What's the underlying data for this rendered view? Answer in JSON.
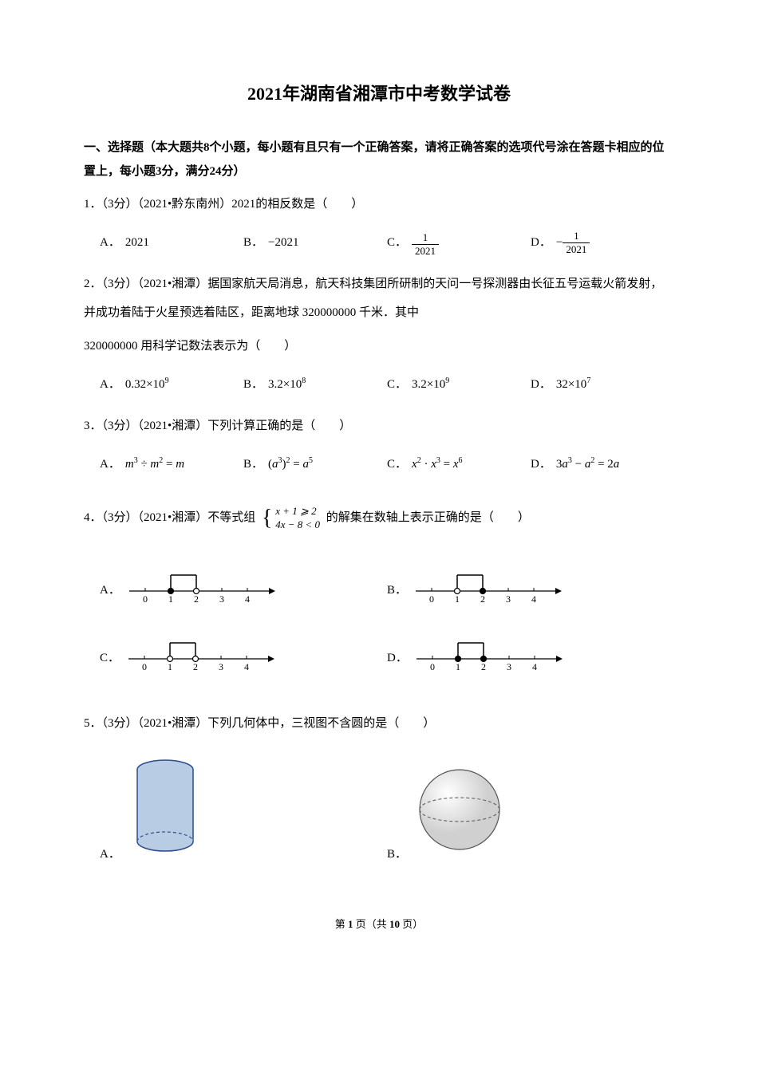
{
  "title": "2021年湖南省湘潭市中考数学试卷",
  "section_header": "一、选择题（本大题共8个小题，每小题有且只有一个正确答案，请将正确答案的选项代号涂在答题卡相应的位置上，每小题3分，满分24分）",
  "q1": {
    "text": "1．（3分）（2021•黔东南州）2021的相反数是",
    "paren": "（　　）",
    "options": {
      "A": {
        "label": "A．",
        "value": "2021"
      },
      "B": {
        "label": "B．",
        "value": "−2021"
      },
      "C": {
        "label": "C．",
        "num": "1",
        "den": "2021"
      },
      "D": {
        "label": "D．",
        "neg": "−",
        "num": "1",
        "den": "2021"
      }
    }
  },
  "q2": {
    "text1": "2．（3分）（2021•湘潭）据国家航天局消息，航天科技集团所研制的天问一号探测器由长征五号运载火箭发射，并成功着陆于火星预选着陆区，距离地球 320000000 千米．其中",
    "text2": "320000000 用科学记数法表示为",
    "paren": "（　　）",
    "options": {
      "A": {
        "label": "A．",
        "base": "0.32×10",
        "exp": "9"
      },
      "B": {
        "label": "B．",
        "base": "3.2×10",
        "exp": "8"
      },
      "C": {
        "label": "C．",
        "base": "3.2×10",
        "exp": "9"
      },
      "D": {
        "label": "D．",
        "base": "32×10",
        "exp": "7"
      }
    }
  },
  "q3": {
    "text": "3．（3分）（2021•湘潭）下列计算正确的是",
    "paren": "（　　）",
    "options": {
      "A": {
        "label": "A．",
        "formula_parts": [
          "m",
          "3",
          " ÷ ",
          "m",
          "2",
          " = ",
          "m"
        ]
      },
      "B": {
        "label": "B．",
        "formula_parts": [
          "(",
          "a",
          "3",
          ")",
          "2",
          " = ",
          "a",
          "5"
        ]
      },
      "C": {
        "label": "C．",
        "formula_parts": [
          "x",
          "2",
          " · ",
          "x",
          "3",
          " = ",
          "x",
          "6"
        ]
      },
      "D": {
        "label": "D．",
        "formula_parts": [
          "3",
          "a",
          "3",
          " − ",
          "a",
          "2",
          " = 2",
          "a"
        ]
      }
    }
  },
  "q4": {
    "text": "4．（3分）（2021•湘潭）不等式组",
    "ineq_line1": "x + 1 ⩾ 2",
    "ineq_line2": "4x − 8 < 0",
    "text2": "的解集在数轴上表示正确的是",
    "paren": "（　　）",
    "options": {
      "A": {
        "label": "A．",
        "start": 1,
        "end": 2,
        "start_filled": true,
        "end_filled": false,
        "start_up": true,
        "end_up": false
      },
      "B": {
        "label": "B．",
        "start": 1,
        "end": 2,
        "start_filled": false,
        "end_filled": true,
        "start_up": true,
        "end_up": false
      },
      "C": {
        "label": "C．",
        "start": 1,
        "end": 2,
        "start_filled": false,
        "end_filled": false,
        "start_up": true,
        "end_up": false
      },
      "D": {
        "label": "D．",
        "start": 1,
        "end": 2,
        "start_filled": true,
        "end_filled": true,
        "start_up": true,
        "end_up": false
      }
    },
    "numline": {
      "ticks": [
        0,
        1,
        2,
        3,
        4
      ]
    }
  },
  "q5": {
    "text": "5．（3分）（2021•湘潭）下列几何体中，三视图不含圆的是",
    "paren": "（　　）",
    "options": {
      "A": {
        "label": "A．",
        "shape": "cylinder"
      },
      "B": {
        "label": "B．",
        "shape": "sphere"
      }
    },
    "colors": {
      "cylinder_fill": "#b8cce4",
      "cylinder_stroke": "#2a4d8e",
      "sphere_fill": "#d0d0d0",
      "sphere_stroke": "#555555"
    }
  },
  "footer": {
    "prefix": "第 ",
    "page": "1",
    "mid": " 页（共 ",
    "total": "10",
    "suffix": " 页）"
  }
}
